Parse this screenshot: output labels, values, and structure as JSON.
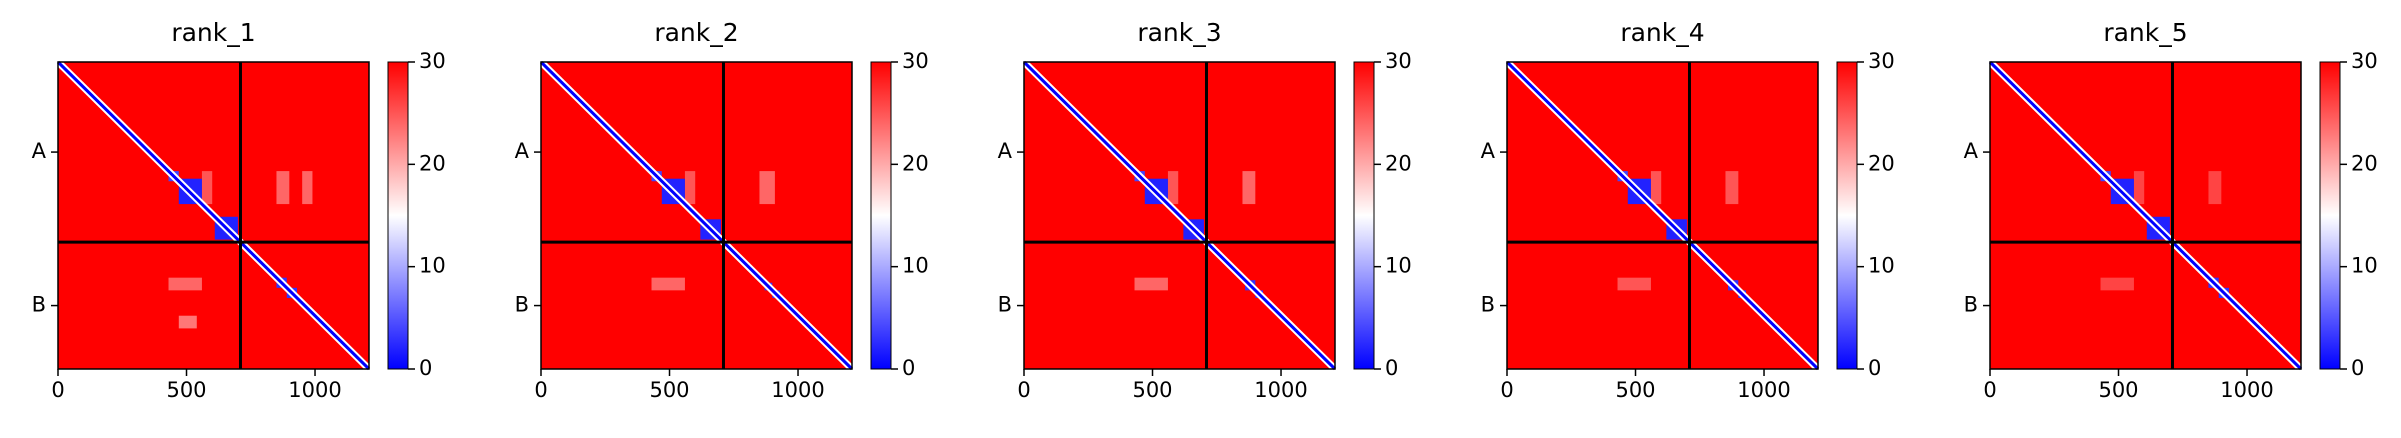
{
  "chart_data": [
    {
      "type": "heatmap",
      "title": "rank_1",
      "xlim": [
        0,
        1210
      ],
      "ylim": [
        1210,
        0
      ],
      "xticks": [
        0,
        500,
        1000
      ],
      "yticks": [
        {
          "value": 355,
          "label": "A"
        },
        {
          "value": 960,
          "label": "B"
        }
      ],
      "chain_breaks": [
        710
      ],
      "clim": [
        0,
        30
      ],
      "cticks": [
        0,
        10,
        20,
        30
      ],
      "colormap": [
        "#0000ff",
        "#ffffff",
        "#ff0000"
      ],
      "background_value": 30,
      "diagonal_value": 0,
      "cells": [
        {
          "x": [
            850,
            900
          ],
          "y": [
            430,
            560
          ],
          "value": 24
        },
        {
          "x": [
            950,
            990
          ],
          "y": [
            430,
            560
          ],
          "value": 24
        },
        {
          "x": [
            560,
            600
          ],
          "y": [
            430,
            560
          ],
          "value": 25
        },
        {
          "x": [
            430,
            560
          ],
          "y": [
            850,
            900
          ],
          "value": 24
        },
        {
          "x": [
            470,
            540
          ],
          "y": [
            1000,
            1050
          ],
          "value": 23
        },
        {
          "x": [
            430,
            470
          ],
          "y": [
            430,
            470
          ],
          "value": 4
        },
        {
          "x": [
            470,
            560
          ],
          "y": [
            460,
            560
          ],
          "value": 2
        },
        {
          "x": [
            610,
            700
          ],
          "y": [
            610,
            700
          ],
          "value": 2
        },
        {
          "x": [
            850,
            890
          ],
          "y": [
            850,
            890
          ],
          "value": 3
        },
        {
          "x": [
            890,
            930
          ],
          "y": [
            890,
            930
          ],
          "value": 3
        }
      ]
    },
    {
      "type": "heatmap",
      "title": "rank_2",
      "xlim": [
        0,
        1210
      ],
      "ylim": [
        1210,
        0
      ],
      "xticks": [
        0,
        500,
        1000
      ],
      "yticks": [
        {
          "value": 355,
          "label": "A"
        },
        {
          "value": 960,
          "label": "B"
        }
      ],
      "chain_breaks": [
        710
      ],
      "clim": [
        0,
        30
      ],
      "cticks": [
        0,
        10,
        20,
        30
      ],
      "colormap": [
        "#0000ff",
        "#ffffff",
        "#ff0000"
      ],
      "background_value": 30,
      "diagonal_value": 0,
      "cells": [
        {
          "x": [
            850,
            910
          ],
          "y": [
            430,
            560
          ],
          "value": 24
        },
        {
          "x": [
            560,
            600
          ],
          "y": [
            430,
            560
          ],
          "value": 25
        },
        {
          "x": [
            430,
            560
          ],
          "y": [
            850,
            900
          ],
          "value": 24
        },
        {
          "x": [
            430,
            470
          ],
          "y": [
            430,
            470
          ],
          "value": 4
        },
        {
          "x": [
            470,
            560
          ],
          "y": [
            460,
            560
          ],
          "value": 2
        },
        {
          "x": [
            620,
            700
          ],
          "y": [
            620,
            700
          ],
          "value": 2
        },
        {
          "x": [
            870,
            900
          ],
          "y": [
            870,
            900
          ],
          "value": 3
        },
        {
          "x": [
            900,
            930
          ],
          "y": [
            900,
            930
          ],
          "value": 3
        }
      ]
    },
    {
      "type": "heatmap",
      "title": "rank_3",
      "xlim": [
        0,
        1210
      ],
      "ylim": [
        1210,
        0
      ],
      "xticks": [
        0,
        500,
        1000
      ],
      "yticks": [
        {
          "value": 355,
          "label": "A"
        },
        {
          "value": 960,
          "label": "B"
        }
      ],
      "chain_breaks": [
        710
      ],
      "clim": [
        0,
        30
      ],
      "cticks": [
        0,
        10,
        20,
        30
      ],
      "colormap": [
        "#0000ff",
        "#ffffff",
        "#ff0000"
      ],
      "background_value": 30,
      "diagonal_value": 0,
      "cells": [
        {
          "x": [
            850,
            900
          ],
          "y": [
            430,
            560
          ],
          "value": 24
        },
        {
          "x": [
            560,
            600
          ],
          "y": [
            430,
            560
          ],
          "value": 25
        },
        {
          "x": [
            430,
            560
          ],
          "y": [
            850,
            900
          ],
          "value": 24
        },
        {
          "x": [
            430,
            470
          ],
          "y": [
            430,
            470
          ],
          "value": 4
        },
        {
          "x": [
            470,
            560
          ],
          "y": [
            460,
            560
          ],
          "value": 2
        },
        {
          "x": [
            620,
            700
          ],
          "y": [
            620,
            700
          ],
          "value": 2
        },
        {
          "x": [
            860,
            900
          ],
          "y": [
            860,
            900
          ],
          "value": 3
        },
        {
          "x": [
            900,
            930
          ],
          "y": [
            900,
            930
          ],
          "value": 3
        }
      ]
    },
    {
      "type": "heatmap",
      "title": "rank_4",
      "xlim": [
        0,
        1210
      ],
      "ylim": [
        1210,
        0
      ],
      "xticks": [
        0,
        500,
        1000
      ],
      "yticks": [
        {
          "value": 355,
          "label": "A"
        },
        {
          "value": 960,
          "label": "B"
        }
      ],
      "chain_breaks": [
        710
      ],
      "clim": [
        0,
        30
      ],
      "cticks": [
        0,
        10,
        20,
        30
      ],
      "colormap": [
        "#0000ff",
        "#ffffff",
        "#ff0000"
      ],
      "background_value": 30,
      "diagonal_value": 0,
      "cells": [
        {
          "x": [
            850,
            900
          ],
          "y": [
            430,
            560
          ],
          "value": 25
        },
        {
          "x": [
            560,
            600
          ],
          "y": [
            430,
            560
          ],
          "value": 25
        },
        {
          "x": [
            430,
            560
          ],
          "y": [
            850,
            900
          ],
          "value": 25
        },
        {
          "x": [
            430,
            470
          ],
          "y": [
            430,
            470
          ],
          "value": 4
        },
        {
          "x": [
            470,
            560
          ],
          "y": [
            460,
            560
          ],
          "value": 2
        },
        {
          "x": [
            620,
            700
          ],
          "y": [
            620,
            700
          ],
          "value": 2
        },
        {
          "x": [
            860,
            900
          ],
          "y": [
            860,
            900
          ],
          "value": 3
        },
        {
          "x": [
            900,
            930
          ],
          "y": [
            900,
            930
          ],
          "value": 3
        }
      ]
    },
    {
      "type": "heatmap",
      "title": "rank_5",
      "xlim": [
        0,
        1210
      ],
      "ylim": [
        1210,
        0
      ],
      "xticks": [
        0,
        500,
        1000
      ],
      "yticks": [
        {
          "value": 355,
          "label": "A"
        },
        {
          "value": 960,
          "label": "B"
        }
      ],
      "chain_breaks": [
        710
      ],
      "clim": [
        0,
        30
      ],
      "cticks": [
        0,
        10,
        20,
        30
      ],
      "colormap": [
        "#0000ff",
        "#ffffff",
        "#ff0000"
      ],
      "background_value": 30,
      "diagonal_value": 0,
      "cells": [
        {
          "x": [
            850,
            900
          ],
          "y": [
            430,
            560
          ],
          "value": 26
        },
        {
          "x": [
            560,
            600
          ],
          "y": [
            430,
            560
          ],
          "value": 26
        },
        {
          "x": [
            430,
            560
          ],
          "y": [
            850,
            900
          ],
          "value": 26
        },
        {
          "x": [
            430,
            470
          ],
          "y": [
            430,
            470
          ],
          "value": 4
        },
        {
          "x": [
            470,
            560
          ],
          "y": [
            460,
            560
          ],
          "value": 2
        },
        {
          "x": [
            610,
            700
          ],
          "y": [
            610,
            700
          ],
          "value": 2
        },
        {
          "x": [
            850,
            890
          ],
          "y": [
            850,
            890
          ],
          "value": 3
        },
        {
          "x": [
            890,
            930
          ],
          "y": [
            890,
            930
          ],
          "value": 3
        }
      ]
    }
  ]
}
